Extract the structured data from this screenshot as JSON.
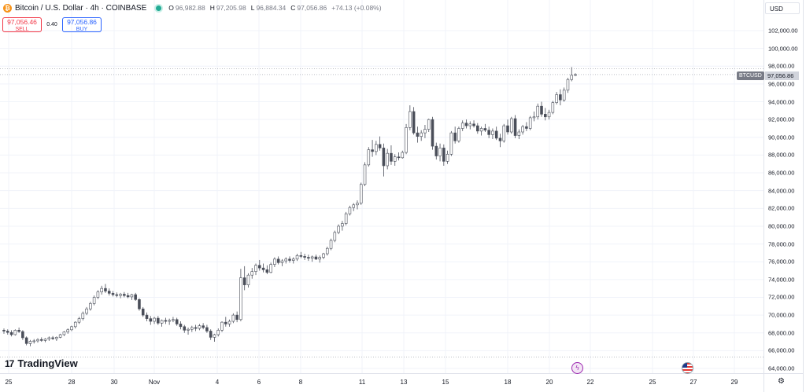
{
  "header": {
    "symbol_title": "Bitcoin / U.S. Dollar · 4h · COINBASE",
    "ohlc": {
      "o_label": "O",
      "o_value": "96,982.88",
      "h_label": "H",
      "h_value": "97,205.98",
      "l_label": "L",
      "l_value": "96,884.34",
      "c_label": "C",
      "c_value": "97,056.86",
      "change": "+74.13 (+0.08%)"
    },
    "currency": "USD"
  },
  "trade": {
    "sell_price": "97,056.46",
    "sell_label": "SELL",
    "spread": "0.40",
    "buy_price": "97,056.86",
    "buy_label": "BUY"
  },
  "price_axis": {
    "labels": [
      "102,000.00",
      "100,000.00",
      "98,000.00",
      "96,000.00",
      "94,000.00",
      "92,000.00",
      "90,000.00",
      "88,000.00",
      "86,000.00",
      "84,000.00",
      "82,000.00",
      "80,000.00",
      "78,000.00",
      "76,000.00",
      "74,000.00",
      "72,000.00",
      "70,000.00",
      "68,000.00",
      "66,000.00",
      "64,000.00"
    ],
    "ticker_tag": "BTCUSD",
    "last_price": "97,056.86"
  },
  "time_axis": {
    "labels": [
      "25",
      "28",
      "30",
      "Nov",
      "4",
      "6",
      "8",
      "11",
      "13",
      "15",
      "18",
      "20",
      "22",
      "25",
      "27",
      "29"
    ]
  },
  "branding": {
    "logo_mark": "17",
    "logo_text": "TradingView"
  },
  "chart_data": {
    "type": "candlestick",
    "title": "Bitcoin / U.S. Dollar · 4h · COINBASE",
    "ylim": [
      63500,
      103500
    ],
    "last_price": 97056.86,
    "up_color": "#ffffff",
    "down_color": "#4a4e59",
    "wick_color": "#4a4e59",
    "candles": [
      [
        68300,
        68500,
        67900,
        68200
      ],
      [
        68200,
        68400,
        67800,
        68050
      ],
      [
        68050,
        68300,
        67600,
        67800
      ],
      [
        67800,
        68400,
        67700,
        68300
      ],
      [
        68300,
        68600,
        68000,
        68150
      ],
      [
        68150,
        68300,
        67200,
        67450
      ],
      [
        67450,
        67600,
        66600,
        66800
      ],
      [
        66800,
        67200,
        66500,
        67050
      ],
      [
        67050,
        67300,
        66800,
        67100
      ],
      [
        67100,
        67400,
        66900,
        67250
      ],
      [
        67250,
        67500,
        67000,
        67150
      ],
      [
        67150,
        67400,
        66950,
        67300
      ],
      [
        67300,
        67600,
        67100,
        67450
      ],
      [
        67450,
        67650,
        67200,
        67350
      ],
      [
        67350,
        67600,
        67100,
        67500
      ],
      [
        67500,
        67900,
        67400,
        67800
      ],
      [
        67800,
        68200,
        67650,
        68100
      ],
      [
        68100,
        68500,
        67900,
        68350
      ],
      [
        68350,
        68800,
        68200,
        68700
      ],
      [
        68700,
        69300,
        68500,
        69200
      ],
      [
        69200,
        69800,
        69000,
        69600
      ],
      [
        69600,
        70400,
        69400,
        70200
      ],
      [
        70200,
        70900,
        70000,
        70700
      ],
      [
        70700,
        71500,
        70500,
        71300
      ],
      [
        71300,
        72200,
        71100,
        72000
      ],
      [
        72000,
        72800,
        71800,
        72600
      ],
      [
        72600,
        73300,
        72300,
        73000
      ],
      [
        73000,
        73500,
        72500,
        72700
      ],
      [
        72700,
        73000,
        72200,
        72450
      ],
      [
        72450,
        72700,
        72100,
        72300
      ],
      [
        72300,
        72550,
        72000,
        72200
      ],
      [
        72200,
        72500,
        71900,
        72350
      ],
      [
        72350,
        72600,
        72000,
        72200
      ],
      [
        72200,
        72500,
        71900,
        72050
      ],
      [
        72050,
        72400,
        71700,
        72300
      ],
      [
        72300,
        72500,
        71600,
        71750
      ],
      [
        71750,
        71900,
        70500,
        70700
      ],
      [
        70700,
        70900,
        69800,
        70000
      ],
      [
        70000,
        70300,
        69300,
        69600
      ],
      [
        69600,
        69900,
        68900,
        69300
      ],
      [
        69300,
        69800,
        69000,
        69650
      ],
      [
        69650,
        69900,
        68900,
        69100
      ],
      [
        69100,
        69500,
        68700,
        69400
      ],
      [
        69400,
        69700,
        69000,
        69300
      ],
      [
        69300,
        69600,
        68900,
        69400
      ],
      [
        69400,
        69800,
        69200,
        69500
      ],
      [
        69500,
        69700,
        68800,
        69000
      ],
      [
        69000,
        69300,
        68400,
        68700
      ],
      [
        68700,
        68900,
        68000,
        68300
      ],
      [
        68300,
        68600,
        67800,
        68400
      ],
      [
        68400,
        68800,
        68100,
        68600
      ],
      [
        68600,
        68900,
        68200,
        68500
      ],
      [
        68500,
        69000,
        68300,
        68800
      ],
      [
        68800,
        69100,
        68400,
        68600
      ],
      [
        68600,
        68900,
        68000,
        68200
      ],
      [
        68200,
        68400,
        67200,
        67500
      ],
      [
        67500,
        67900,
        67000,
        67800
      ],
      [
        67800,
        68500,
        67600,
        68300
      ],
      [
        68300,
        69300,
        68100,
        69200
      ],
      [
        69200,
        69800,
        68700,
        69000
      ],
      [
        69000,
        69500,
        68700,
        69300
      ],
      [
        69300,
        70200,
        69100,
        70000
      ],
      [
        70000,
        70400,
        69200,
        69500
      ],
      [
        69500,
        75200,
        69300,
        74200
      ],
      [
        74200,
        75500,
        72800,
        73400
      ],
      [
        73400,
        74700,
        73100,
        74500
      ],
      [
        74500,
        75300,
        74100,
        74900
      ],
      [
        74900,
        75800,
        74500,
        75600
      ],
      [
        75600,
        76200,
        75000,
        75300
      ],
      [
        75300,
        75800,
        74800,
        75100
      ],
      [
        75100,
        75600,
        74600,
        74800
      ],
      [
        74800,
        75900,
        74700,
        75700
      ],
      [
        75700,
        76500,
        75400,
        76300
      ],
      [
        76300,
        76600,
        75700,
        75900
      ],
      [
        75900,
        76300,
        75500,
        76100
      ],
      [
        76100,
        76500,
        75800,
        76300
      ],
      [
        76300,
        76600,
        75900,
        76150
      ],
      [
        76150,
        76500,
        75800,
        76300
      ],
      [
        76300,
        76900,
        76100,
        76700
      ],
      [
        76700,
        77100,
        76400,
        76600
      ],
      [
        76600,
        76900,
        76200,
        76500
      ],
      [
        76500,
        76800,
        76100,
        76400
      ],
      [
        76400,
        76700,
        76000,
        76550
      ],
      [
        76550,
        76800,
        76200,
        76300
      ],
      [
        76300,
        76700,
        75900,
        76500
      ],
      [
        76500,
        77000,
        76300,
        76900
      ],
      [
        76900,
        77700,
        76700,
        77500
      ],
      [
        77500,
        78600,
        77300,
        78400
      ],
      [
        78400,
        79500,
        78200,
        79300
      ],
      [
        79300,
        80200,
        79100,
        80000
      ],
      [
        80000,
        80600,
        79500,
        80300
      ],
      [
        80300,
        81600,
        80100,
        81400
      ],
      [
        81400,
        82300,
        81200,
        82100
      ],
      [
        82100,
        82600,
        81700,
        82400
      ],
      [
        82400,
        82900,
        81900,
        82600
      ],
      [
        82600,
        84900,
        82400,
        84700
      ],
      [
        84700,
        87200,
        84500,
        86900
      ],
      [
        86900,
        88900,
        86700,
        88600
      ],
      [
        88600,
        89700,
        87800,
        88400
      ],
      [
        88400,
        89600,
        88000,
        89200
      ],
      [
        89200,
        90100,
        88500,
        88800
      ],
      [
        88800,
        89300,
        85600,
        86800
      ],
      [
        86800,
        88700,
        86400,
        88200
      ],
      [
        88200,
        89100,
        86900,
        87300
      ],
      [
        87300,
        88100,
        86800,
        87800
      ],
      [
        87800,
        88300,
        87400,
        87700
      ],
      [
        87700,
        88500,
        87600,
        88300
      ],
      [
        88300,
        91500,
        88100,
        91100
      ],
      [
        91100,
        93600,
        90800,
        92900
      ],
      [
        92900,
        93400,
        90300,
        90500
      ],
      [
        90500,
        91200,
        89400,
        90100
      ],
      [
        90100,
        90800,
        89600,
        90500
      ],
      [
        90500,
        91400,
        89900,
        90900
      ],
      [
        90900,
        92100,
        90600,
        92000
      ],
      [
        92000,
        92300,
        88600,
        89000
      ],
      [
        89000,
        89400,
        87500,
        87900
      ],
      [
        87900,
        89300,
        87300,
        88800
      ],
      [
        88800,
        89200,
        86800,
        87300
      ],
      [
        87300,
        88500,
        87000,
        88100
      ],
      [
        88100,
        90700,
        87900,
        90500
      ],
      [
        90500,
        91200,
        89300,
        89600
      ],
      [
        89600,
        91200,
        89400,
        91000
      ],
      [
        91000,
        91900,
        90700,
        91600
      ],
      [
        91600,
        92000,
        91000,
        91300
      ],
      [
        91300,
        91800,
        90900,
        91500
      ],
      [
        91500,
        91900,
        91100,
        91300
      ],
      [
        91300,
        91600,
        90400,
        90700
      ],
      [
        90700,
        91200,
        90200,
        91000
      ],
      [
        91000,
        91500,
        90600,
        90800
      ],
      [
        90800,
        91200,
        89900,
        90300
      ],
      [
        90300,
        91000,
        89800,
        90700
      ],
      [
        90700,
        91200,
        89700,
        89900
      ],
      [
        89900,
        90400,
        88900,
        89600
      ],
      [
        89600,
        91500,
        89400,
        91300
      ],
      [
        91300,
        92000,
        90300,
        90600
      ],
      [
        90600,
        92300,
        90400,
        92100
      ],
      [
        92100,
        92500,
        89900,
        90200
      ],
      [
        90200,
        90900,
        89800,
        90600
      ],
      [
        90600,
        91400,
        90300,
        91200
      ],
      [
        91200,
        91700,
        90700,
        91000
      ],
      [
        91000,
        92400,
        90800,
        92200
      ],
      [
        92200,
        92900,
        91800,
        92300
      ],
      [
        92300,
        93800,
        92000,
        93500
      ],
      [
        93500,
        94000,
        92300,
        92600
      ],
      [
        92600,
        93300,
        91900,
        92300
      ],
      [
        92300,
        93100,
        92000,
        92800
      ],
      [
        92800,
        94100,
        92600,
        93900
      ],
      [
        93900,
        95100,
        93700,
        94800
      ],
      [
        94800,
        95400,
        93600,
        94200
      ],
      [
        94200,
        95600,
        94000,
        95300
      ],
      [
        95300,
        96700,
        95000,
        96500
      ],
      [
        96500,
        97900,
        96300,
        96983
      ],
      [
        96982.88,
        97205.98,
        96884.34,
        97056.86
      ]
    ]
  }
}
